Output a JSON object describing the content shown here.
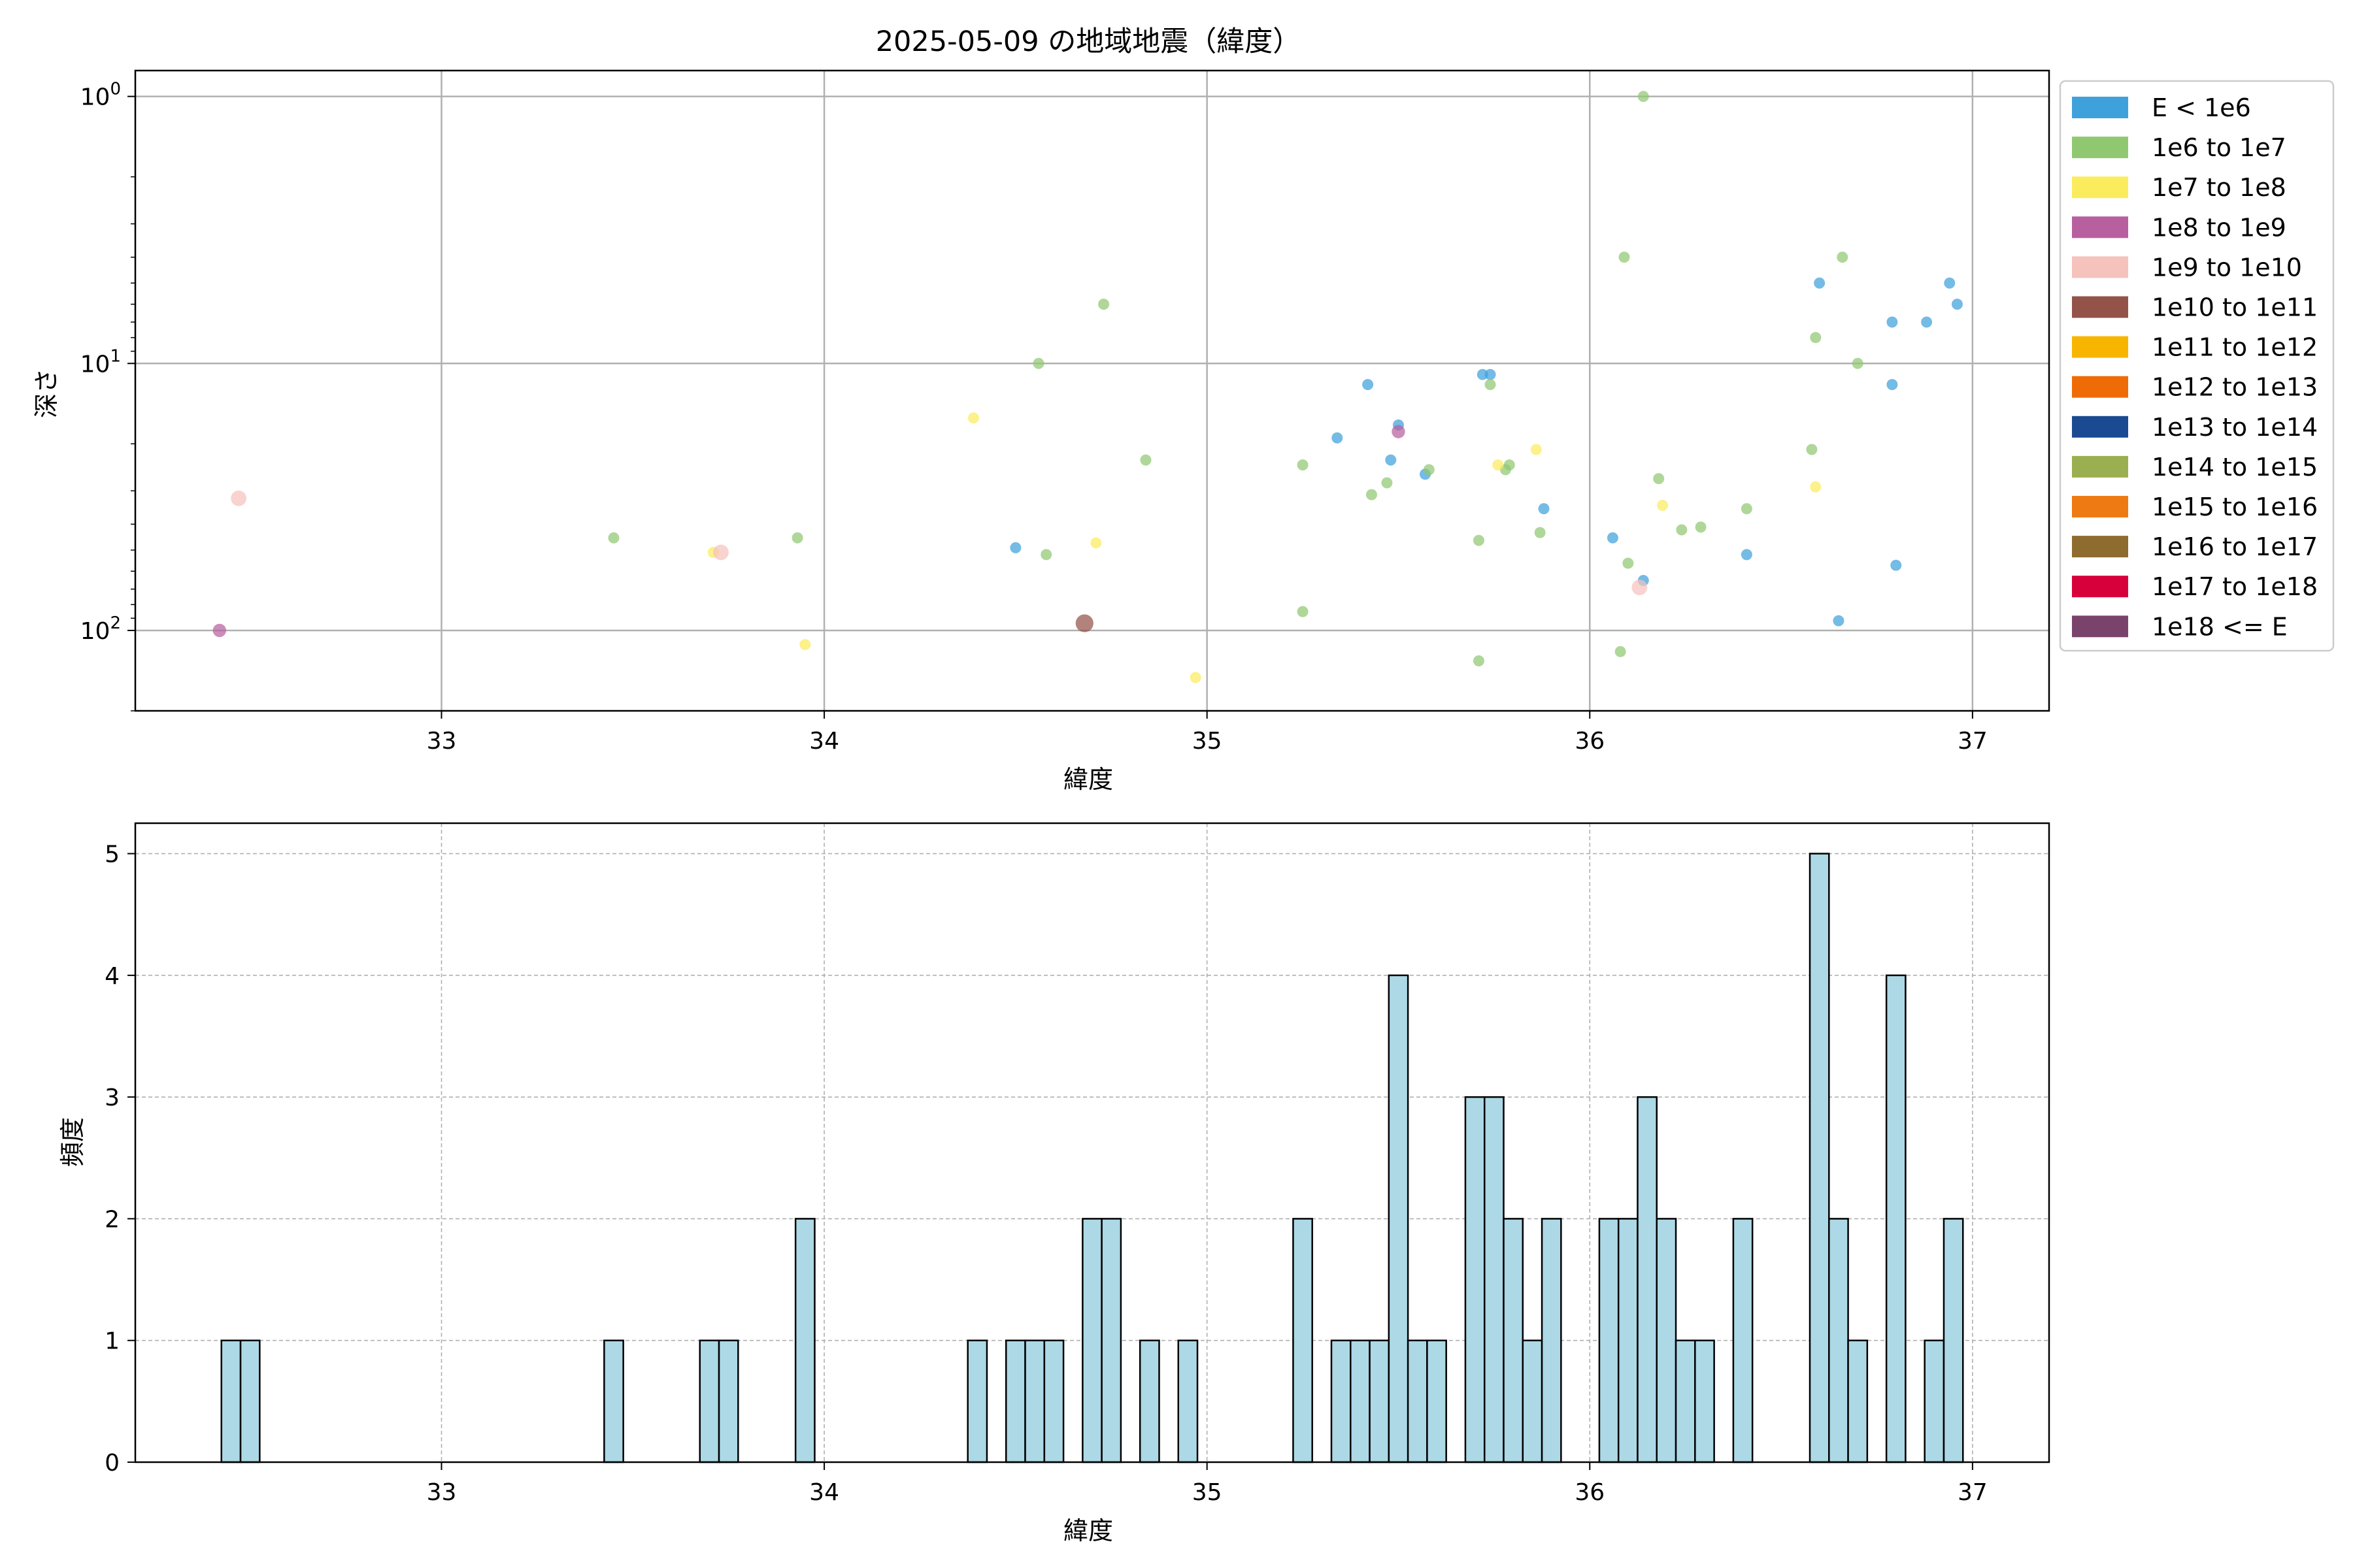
{
  "title": "2025-05-09 の地域地震（緯度）",
  "scatter_xlabel": "緯度",
  "scatter_ylabel": "深さ",
  "hist_xlabel": "緯度",
  "hist_ylabel": "頻度",
  "legend": [
    {
      "label": "E < 1e6",
      "color": "#3fa1dc"
    },
    {
      "label": "1e6 to 1e7",
      "color": "#90c872"
    },
    {
      "label": "1e7 to 1e8",
      "color": "#fbec5d"
    },
    {
      "label": "1e8 to 1e9",
      "color": "#b85fa0"
    },
    {
      "label": "1e9 to 1e10",
      "color": "#f5c2bc"
    },
    {
      "label": "1e10 to 1e11",
      "color": "#935349"
    },
    {
      "label": "1e11 to 1e12",
      "color": "#f8b500"
    },
    {
      "label": "1e12 to 1e13",
      "color": "#ee6b05"
    },
    {
      "label": "1e13 to 1e14",
      "color": "#1c4a92"
    },
    {
      "label": "1e14 to 1e15",
      "color": "#9aaf4f"
    },
    {
      "label": "1e15 to 1e16",
      "color": "#ed7a13"
    },
    {
      "label": "1e16 to 1e17",
      "color": "#8e6b2e"
    },
    {
      "label": "1e17 to 1e18",
      "color": "#d7003a"
    },
    {
      "label": "1e18 <= E",
      "color": "#7a436c"
    }
  ],
  "chart_data": [
    {
      "type": "scatter",
      "title": "2025-05-09 の地域地震（緯度）",
      "xlabel": "緯度",
      "ylabel": "深さ",
      "xlim": [
        32.2,
        37.2
      ],
      "ylim": [
        200,
        0.8
      ],
      "yscale": "log",
      "y_inverted": true,
      "xticks": [
        33,
        34,
        35,
        36,
        37
      ],
      "yticks": [
        {
          "value": 1,
          "label": "10^0"
        },
        {
          "value": 10,
          "label": "10^1"
        },
        {
          "value": 100,
          "label": "10^2"
        }
      ],
      "grid": true,
      "legend_position": "outside-right",
      "series": [
        {
          "name": "E < 1e6",
          "color": "#3fa1dc",
          "size": 1,
          "points": [
            [
              34.5,
              49
            ],
            [
              35.34,
              19
            ],
            [
              35.42,
              12
            ],
            [
              35.48,
              23
            ],
            [
              35.5,
              17
            ],
            [
              35.57,
              26
            ],
            [
              35.72,
              11
            ],
            [
              35.74,
              11
            ],
            [
              35.88,
              35
            ],
            [
              36.06,
              45
            ],
            [
              36.14,
              65
            ],
            [
              36.41,
              52
            ],
            [
              36.6,
              5
            ],
            [
              36.65,
              92
            ],
            [
              36.79,
              7
            ],
            [
              36.79,
              12
            ],
            [
              36.8,
              57
            ],
            [
              36.88,
              7
            ],
            [
              36.94,
              5
            ],
            [
              36.96,
              6
            ]
          ]
        },
        {
          "name": "1e6 to 1e7",
          "color": "#90c872",
          "size": 1,
          "points": [
            [
              33.45,
              45
            ],
            [
              33.93,
              45
            ],
            [
              34.56,
              10
            ],
            [
              34.58,
              52
            ],
            [
              34.73,
              6
            ],
            [
              34.84,
              23
            ],
            [
              35.25,
              24
            ],
            [
              35.25,
              85
            ],
            [
              35.43,
              31
            ],
            [
              35.47,
              28
            ],
            [
              35.58,
              25
            ],
            [
              35.71,
              46
            ],
            [
              35.71,
              130
            ],
            [
              35.74,
              12
            ],
            [
              35.78,
              25
            ],
            [
              35.79,
              24
            ],
            [
              35.87,
              43
            ],
            [
              36.08,
              120
            ],
            [
              36.09,
              4
            ],
            [
              36.1,
              56
            ],
            [
              36.14,
              1
            ],
            [
              36.18,
              27
            ],
            [
              36.24,
              42
            ],
            [
              36.29,
              41
            ],
            [
              36.41,
              35
            ],
            [
              36.58,
              21
            ],
            [
              36.59,
              8
            ],
            [
              36.66,
              4
            ],
            [
              36.7,
              10
            ]
          ]
        },
        {
          "name": "1e7 to 1e8",
          "color": "#fbec5d",
          "size": 1,
          "points": [
            [
              33.71,
              51
            ],
            [
              33.95,
              113
            ],
            [
              34.39,
              16
            ],
            [
              34.71,
              47
            ],
            [
              34.97,
              150
            ],
            [
              35.76,
              24
            ],
            [
              35.86,
              21
            ],
            [
              36.19,
              34
            ],
            [
              36.59,
              29
            ]
          ]
        },
        {
          "name": "1e8 to 1e9",
          "color": "#b85fa0",
          "size": 1.2,
          "points": [
            [
              32.42,
              100
            ],
            [
              35.5,
              18
            ]
          ]
        },
        {
          "name": "1e9 to 1e10",
          "color": "#f5c2bc",
          "size": 1.4,
          "points": [
            [
              32.47,
              32
            ],
            [
              33.73,
              51
            ],
            [
              36.13,
              69
            ]
          ]
        },
        {
          "name": "1e10 to 1e11",
          "color": "#935349",
          "size": 1.6,
          "points": [
            [
              34.68,
              94
            ]
          ]
        }
      ]
    },
    {
      "type": "bar",
      "xlabel": "緯度",
      "ylabel": "頻度",
      "xlim": [
        32.2,
        37.2
      ],
      "ylim": [
        0,
        5.25
      ],
      "xticks": [
        33,
        34,
        35,
        36,
        37
      ],
      "yticks": [
        0,
        1,
        2,
        3,
        4,
        5
      ],
      "grid": true,
      "bar_color": "#add8e6",
      "bar_width": 0.05,
      "bins": [
        [
          32.45,
          1
        ],
        [
          32.5,
          1
        ],
        [
          33.45,
          1
        ],
        [
          33.7,
          1
        ],
        [
          33.75,
          1
        ],
        [
          33.95,
          2
        ],
        [
          34.4,
          1
        ],
        [
          34.5,
          1
        ],
        [
          34.55,
          1
        ],
        [
          34.6,
          1
        ],
        [
          34.7,
          2
        ],
        [
          34.75,
          2
        ],
        [
          34.85,
          1
        ],
        [
          34.95,
          1
        ],
        [
          35.25,
          2
        ],
        [
          35.35,
          1
        ],
        [
          35.4,
          1
        ],
        [
          35.45,
          1
        ],
        [
          35.5,
          4
        ],
        [
          35.55,
          1
        ],
        [
          35.6,
          1
        ],
        [
          35.7,
          3
        ],
        [
          35.75,
          3
        ],
        [
          35.8,
          2
        ],
        [
          35.85,
          1
        ],
        [
          35.9,
          2
        ],
        [
          36.05,
          2
        ],
        [
          36.1,
          2
        ],
        [
          36.15,
          3
        ],
        [
          36.2,
          2
        ],
        [
          36.25,
          1
        ],
        [
          36.3,
          1
        ],
        [
          36.4,
          2
        ],
        [
          36.6,
          5
        ],
        [
          36.65,
          2
        ],
        [
          36.7,
          1
        ],
        [
          36.8,
          4
        ],
        [
          36.9,
          1
        ],
        [
          36.95,
          2
        ]
      ]
    }
  ]
}
